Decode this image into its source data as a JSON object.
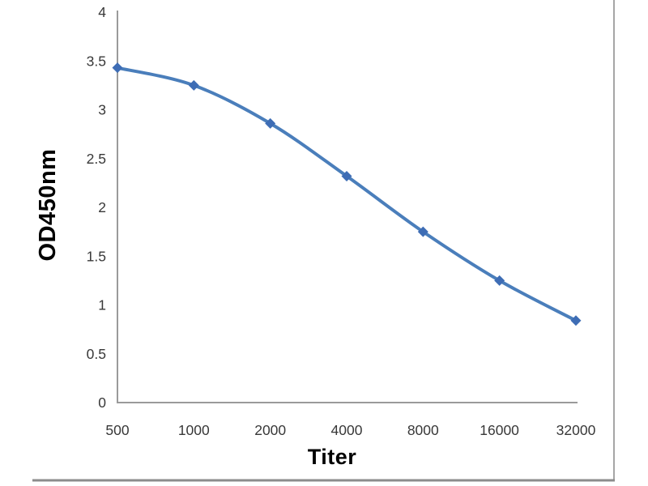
{
  "chart_data": {
    "type": "line",
    "title": "",
    "xlabel": "Titer",
    "ylabel": "OD450nm",
    "categories": [
      "500",
      "1000",
      "2000",
      "4000",
      "8000",
      "16000",
      "32000"
    ],
    "series": [
      {
        "name": "OD450nm",
        "values": [
          3.43,
          3.25,
          2.86,
          2.32,
          1.75,
          1.25,
          0.84
        ]
      }
    ],
    "ylim": [
      0,
      4
    ],
    "y_tick_values": [
      0,
      0.5,
      1,
      1.5,
      2,
      2.5,
      3,
      3.5,
      4
    ],
    "y_tick_labels": [
      "0",
      "0.5",
      "1",
      "1.5",
      "2",
      "2.5",
      "3",
      "3.5",
      "4"
    ],
    "grid": false,
    "legend": "none",
    "marker": "diamond",
    "line_smoothed": true,
    "colors": {
      "line": "#4a7ebb",
      "marker": "#3e6db5",
      "axis": "#9a9a9a",
      "tick_text": "#383838",
      "axis_title_text": "#000000",
      "frame_right": "#a6a6a6",
      "frame_bottom": "#8c8c8c",
      "background": "#ffffff"
    }
  }
}
